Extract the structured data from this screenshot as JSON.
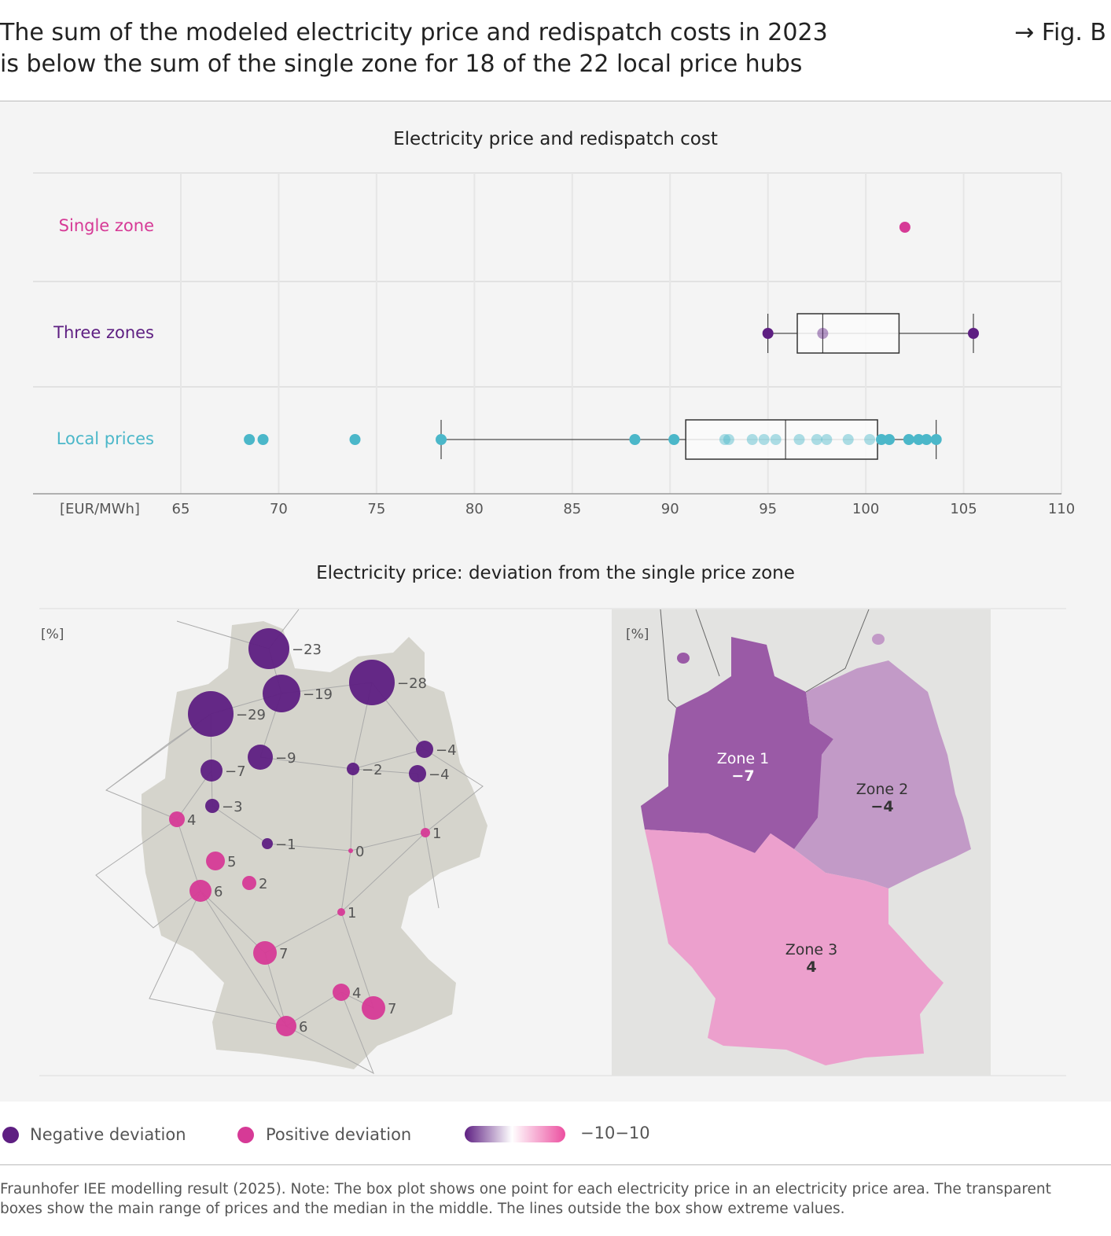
{
  "header": {
    "title_line1": "The sum of the modeled electricity price and redispatch costs in 2023",
    "title_line2": "is below the sum of the single zone for 18 of the 22 local price hubs",
    "fig_ref": "→ Fig. B"
  },
  "chart_data": [
    {
      "type": "scatter",
      "title": "Electricity price and redispatch cost",
      "xlabel": "[EUR/MWh]",
      "xlim": [
        65,
        110
      ],
      "xticks": [
        65,
        70,
        75,
        80,
        85,
        90,
        95,
        100,
        105,
        110
      ],
      "rows": [
        {
          "name": "Single zone",
          "color": "#d63a96",
          "points": [
            102.0
          ]
        },
        {
          "name": "Three zones",
          "color": "#5e1f82",
          "points": [
            95.0,
            97.8,
            105.5
          ],
          "box": {
            "min": 95.0,
            "q1": 96.5,
            "median": 97.8,
            "q3": 101.7,
            "max": 105.5
          }
        },
        {
          "name": "Local prices",
          "color": "#4bb7c9",
          "points": [
            68.5,
            69.2,
            73.9,
            78.3,
            88.2,
            90.2,
            92.8,
            93.0,
            94.2,
            94.8,
            95.4,
            96.6,
            97.5,
            98.0,
            99.1,
            100.2,
            100.8,
            101.2,
            102.2,
            102.7,
            103.1,
            103.6
          ],
          "box": {
            "min": 78.3,
            "q1": 90.8,
            "median": 95.9,
            "q3": 100.6,
            "max": 103.6
          }
        }
      ]
    },
    {
      "type": "scatter",
      "title": "Electricity price: deviation from the single price zone",
      "unit": "[%]",
      "hub_deviations": [
        -23,
        -19,
        -28,
        -29,
        -9,
        -7,
        -2,
        -4,
        -4,
        -3,
        4,
        -1,
        0,
        1,
        5,
        2,
        6,
        1,
        7,
        4,
        7,
        6
      ]
    },
    {
      "type": "heatmap",
      "unit": "[%]",
      "zones": [
        {
          "name": "Zone 1",
          "value": "−7"
        },
        {
          "name": "Zone 2",
          "value": "−4"
        },
        {
          "name": "Zone 3",
          "value": "4"
        }
      ]
    }
  ],
  "legend": {
    "negative": "Negative deviation",
    "positive": "Positive deviation",
    "scale": "−10−10",
    "neg_color": "#5e1f82",
    "pos_color": "#d63a96"
  },
  "note": {
    "line1": "Fraunhofer IEE modelling result (2025). Note: The box plot shows one point for each electricity price in an electricity price area. The transparent",
    "line2": "boxes show the main range of prices and the median in the middle. The lines outside the box show extreme values."
  }
}
